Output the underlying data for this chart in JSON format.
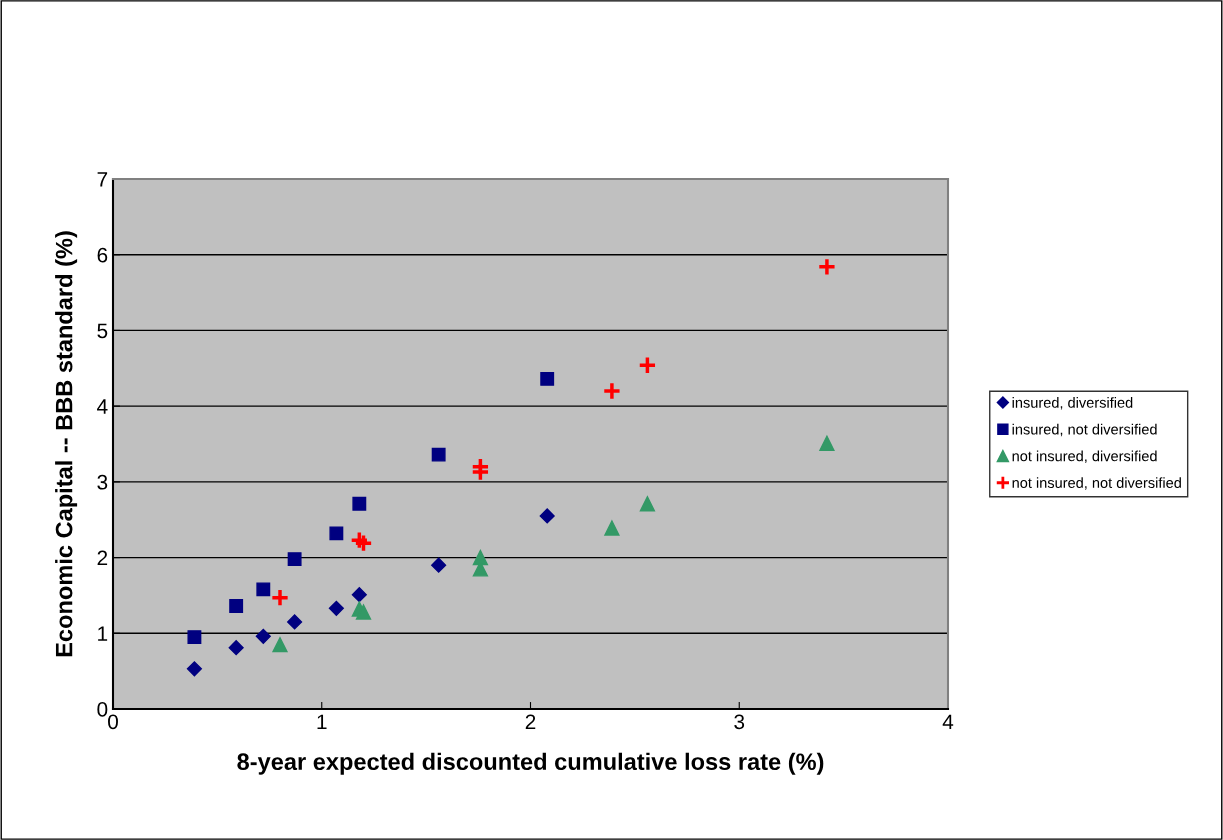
{
  "chart_data": {
    "type": "scatter",
    "xlabel": "8-year expected discounted cumulative loss rate (%)",
    "ylabel": "Economic Capital -- BBB standard (%)",
    "xlim": [
      0,
      4
    ],
    "xticks": [
      0,
      1,
      2,
      3,
      4
    ],
    "ylim": [
      0,
      7
    ],
    "yticks": [
      0,
      1,
      2,
      3,
      4,
      5,
      6,
      7
    ],
    "grid": "y",
    "legend": "right",
    "series": [
      {
        "name": "insured, diversified",
        "color": "#000080",
        "marker": "diamond",
        "x": [
          0.39,
          0.59,
          0.72,
          0.87,
          1.07,
          1.18,
          1.56,
          2.08
        ],
        "values": [
          0.53,
          0.81,
          0.96,
          1.15,
          1.33,
          1.51,
          1.9,
          2.55
        ]
      },
      {
        "name": "insured, not diversified",
        "color": "#000080",
        "marker": "square",
        "x": [
          0.39,
          0.59,
          0.72,
          0.87,
          1.07,
          1.18,
          1.56,
          2.08
        ],
        "values": [
          0.95,
          1.36,
          1.58,
          1.98,
          2.32,
          2.71,
          3.36,
          4.36
        ]
      },
      {
        "name": "not insured, diversified",
        "color": "#339966",
        "marker": "triangle",
        "x": [
          0.8,
          1.18,
          1.2,
          1.76,
          1.76,
          2.39,
          2.56,
          3.42
        ],
        "values": [
          0.85,
          1.32,
          1.28,
          2.0,
          1.85,
          2.39,
          2.71,
          3.51
        ]
      },
      {
        "name": "not insured, not diversified",
        "color": "#ff0000",
        "marker": "cross",
        "x": [
          0.8,
          1.18,
          1.2,
          1.76,
          1.76,
          2.39,
          2.56,
          3.42
        ],
        "values": [
          1.47,
          2.23,
          2.19,
          3.2,
          3.13,
          4.2,
          4.54,
          5.84
        ]
      }
    ]
  }
}
